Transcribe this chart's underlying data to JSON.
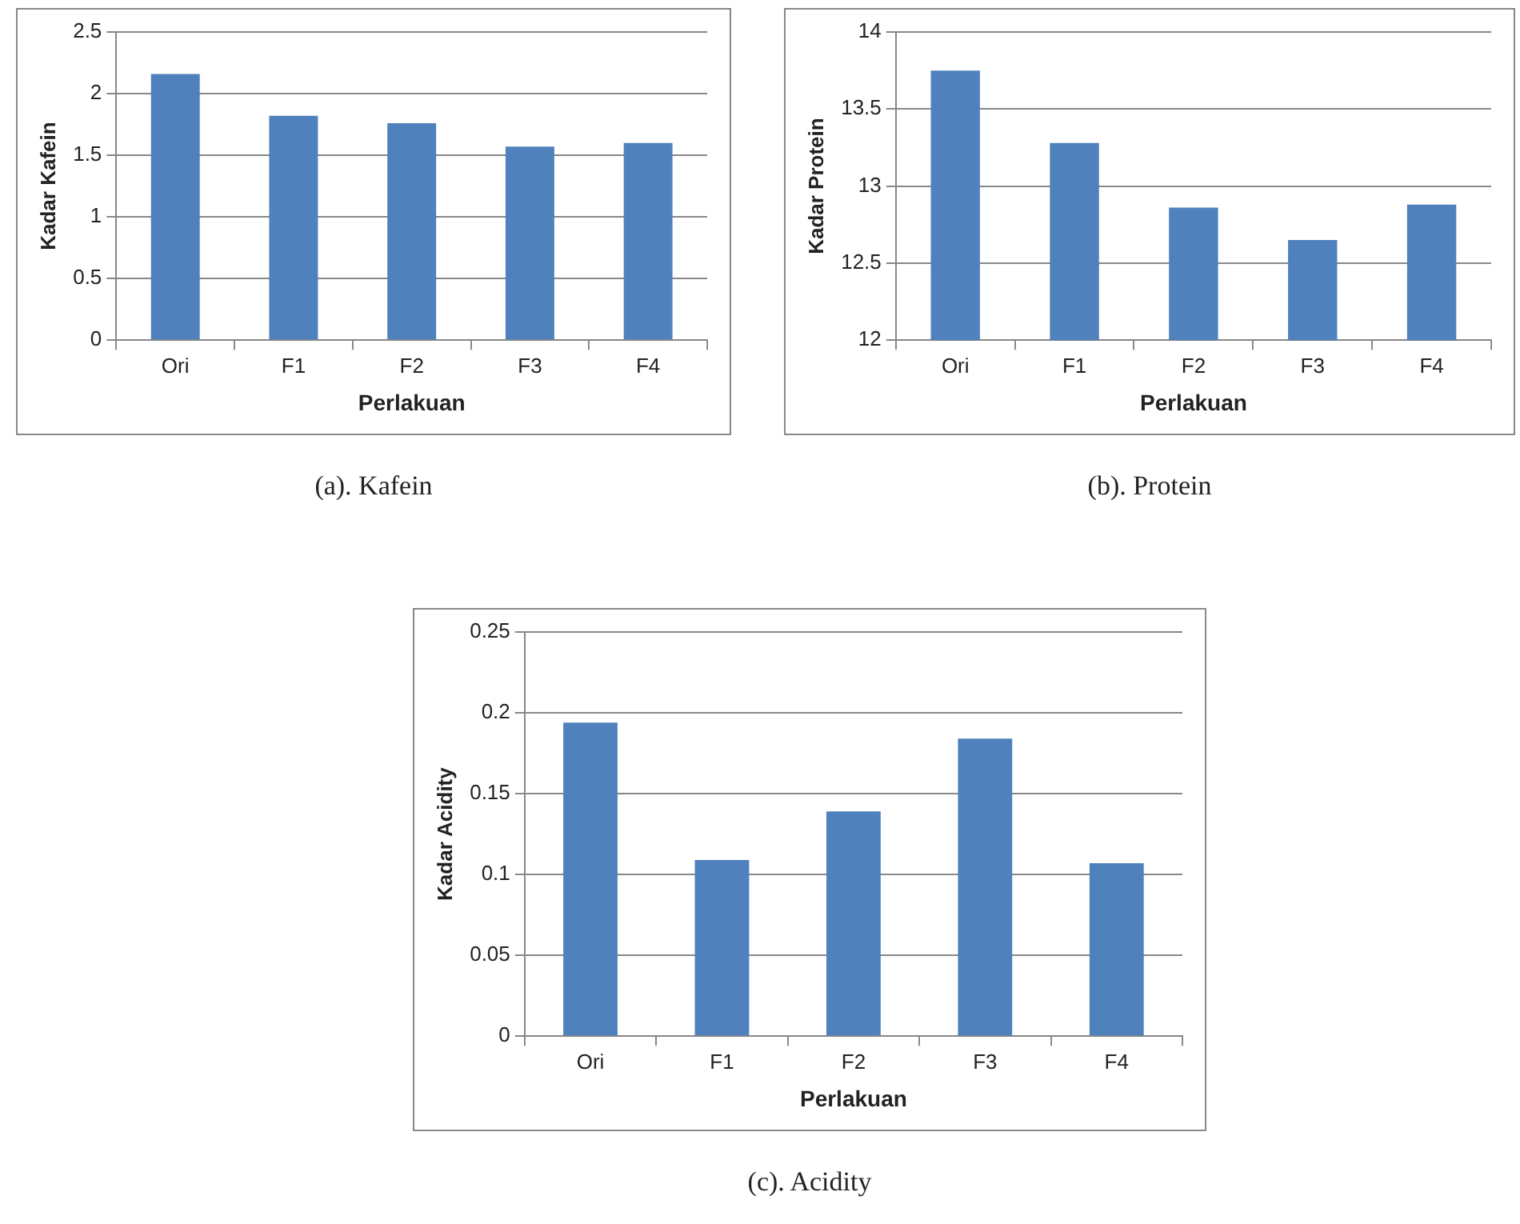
{
  "chart_data": [
    {
      "type": "bar",
      "categories": [
        "Ori",
        "F1",
        "F2",
        "F3",
        "F4"
      ],
      "values": [
        2.16,
        1.82,
        1.76,
        1.57,
        1.6
      ],
      "color": "#4f81bd",
      "xlabel": "Perlakuan",
      "ylabel": "Kadar Kafein",
      "ylim": [
        0,
        2.5
      ],
      "yticks": [
        0,
        0.5,
        1,
        1.5,
        2,
        2.5
      ],
      "grid": "y",
      "annotations": [
        "(a). Kafein"
      ]
    },
    {
      "type": "bar",
      "categories": [
        "Ori",
        "F1",
        "F2",
        "F3",
        "F4"
      ],
      "values": [
        13.75,
        13.28,
        12.86,
        12.65,
        12.88
      ],
      "color": "#4f81bd",
      "xlabel": "Perlakuan",
      "ylabel": "Kadar Protein",
      "ylim": [
        12,
        14
      ],
      "yticks": [
        12,
        12.5,
        13,
        13.5,
        14
      ],
      "grid": "y",
      "annotations": [
        "(b). Protein"
      ]
    },
    {
      "type": "bar",
      "categories": [
        "Ori",
        "F1",
        "F2",
        "F3",
        "F4"
      ],
      "values": [
        0.194,
        0.109,
        0.139,
        0.184,
        0.107
      ],
      "color": "#4f81bd",
      "xlabel": "Perlakuan",
      "ylabel": "Kadar Acidity",
      "ylim": [
        0,
        0.25
      ],
      "yticks": [
        0,
        0.05,
        0.1,
        0.15,
        0.2,
        0.25
      ],
      "grid": "y",
      "annotations": [
        "(c). Acidity"
      ]
    }
  ]
}
